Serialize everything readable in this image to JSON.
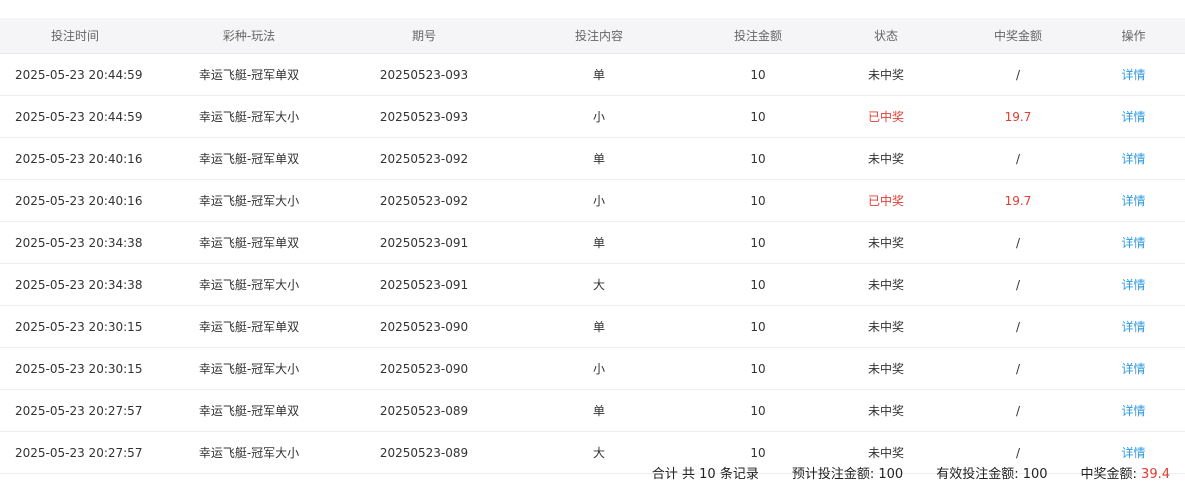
{
  "headers": [
    "投注时间",
    "彩种-玩法",
    "期号",
    "投注内容",
    "投注金额",
    "状态",
    "中奖金额",
    "操作"
  ],
  "rows": [
    {
      "time": "2025-05-23 20:44:59",
      "game": "幸运飞艇-冠军单双",
      "issue": "20250523-093",
      "content": "单",
      "amount": "10",
      "status": "未中奖",
      "won": false,
      "prize": "/",
      "action": "详情"
    },
    {
      "time": "2025-05-23 20:44:59",
      "game": "幸运飞艇-冠军大小",
      "issue": "20250523-093",
      "content": "小",
      "amount": "10",
      "status": "已中奖",
      "won": true,
      "prize": "19.7",
      "action": "详情"
    },
    {
      "time": "2025-05-23 20:40:16",
      "game": "幸运飞艇-冠军单双",
      "issue": "20250523-092",
      "content": "单",
      "amount": "10",
      "status": "未中奖",
      "won": false,
      "prize": "/",
      "action": "详情"
    },
    {
      "time": "2025-05-23 20:40:16",
      "game": "幸运飞艇-冠军大小",
      "issue": "20250523-092",
      "content": "小",
      "amount": "10",
      "status": "已中奖",
      "won": true,
      "prize": "19.7",
      "action": "详情"
    },
    {
      "time": "2025-05-23 20:34:38",
      "game": "幸运飞艇-冠军单双",
      "issue": "20250523-091",
      "content": "单",
      "amount": "10",
      "status": "未中奖",
      "won": false,
      "prize": "/",
      "action": "详情"
    },
    {
      "time": "2025-05-23 20:34:38",
      "game": "幸运飞艇-冠军大小",
      "issue": "20250523-091",
      "content": "大",
      "amount": "10",
      "status": "未中奖",
      "won": false,
      "prize": "/",
      "action": "详情"
    },
    {
      "time": "2025-05-23 20:30:15",
      "game": "幸运飞艇-冠军单双",
      "issue": "20250523-090",
      "content": "单",
      "amount": "10",
      "status": "未中奖",
      "won": false,
      "prize": "/",
      "action": "详情"
    },
    {
      "time": "2025-05-23 20:30:15",
      "game": "幸运飞艇-冠军大小",
      "issue": "20250523-090",
      "content": "小",
      "amount": "10",
      "status": "未中奖",
      "won": false,
      "prize": "/",
      "action": "详情"
    },
    {
      "time": "2025-05-23 20:27:57",
      "game": "幸运飞艇-冠军单双",
      "issue": "20250523-089",
      "content": "单",
      "amount": "10",
      "status": "未中奖",
      "won": false,
      "prize": "/",
      "action": "详情"
    },
    {
      "time": "2025-05-23 20:27:57",
      "game": "幸运飞艇-冠军大小",
      "issue": "20250523-089",
      "content": "大",
      "amount": "10",
      "status": "未中奖",
      "won": false,
      "prize": "/",
      "action": "详情"
    }
  ],
  "summary": {
    "total_records": "合计 共 10 条记录",
    "expected_label": "预计投注金额: ",
    "expected_value": "100",
    "valid_label": "有效投注金额: ",
    "valid_value": "100",
    "prize_label": "中奖金额: ",
    "prize_value": "39.4"
  },
  "colors": {
    "won": "#e23c33",
    "link": "#2d9ae0",
    "header_bg": "#f5f5f7"
  }
}
